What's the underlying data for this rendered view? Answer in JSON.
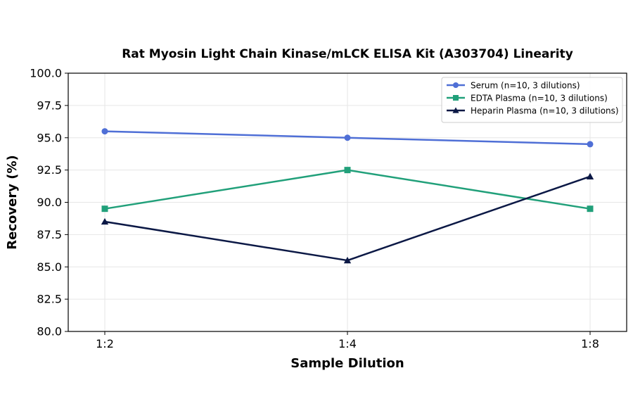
{
  "chart_data": {
    "type": "line",
    "title": "Rat Myosin Light Chain Kinase/mLCK ELISA Kit (A303704) Linearity",
    "xlabel": "Sample Dilution",
    "ylabel": "Recovery (%)",
    "categories": [
      "1:2",
      "1:4",
      "1:8"
    ],
    "ylim": [
      80.0,
      100.0
    ],
    "yticks": [
      "80.0",
      "82.5",
      "85.0",
      "87.5",
      "90.0",
      "92.5",
      "95.0",
      "97.5",
      "100.0"
    ],
    "grid": true,
    "legend_position": "top-right",
    "series": [
      {
        "name": "Serum (n=10, 3 dilutions)",
        "values": [
          95.5,
          95.0,
          94.5
        ],
        "color": "#4f6fd6",
        "marker": "circle"
      },
      {
        "name": "EDTA Plasma (n=10, 3 dilutions)",
        "values": [
          89.5,
          92.5,
          89.5
        ],
        "color": "#21a07a",
        "marker": "square"
      },
      {
        "name": "Heparin Plasma (n=10, 3 dilutions)",
        "values": [
          88.5,
          85.5,
          92.0
        ],
        "color": "#0b1845",
        "marker": "triangle"
      }
    ]
  }
}
